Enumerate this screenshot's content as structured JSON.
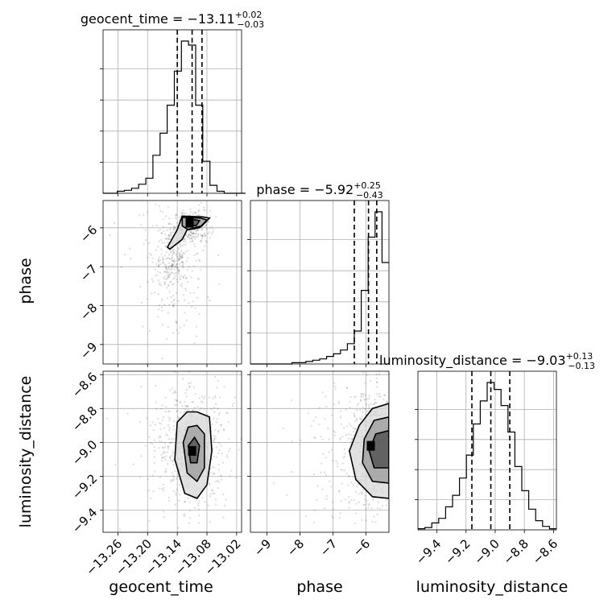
{
  "chart_data": {
    "type": "corner",
    "parameters": [
      {
        "name": "geocent_time",
        "axis_label": "geocent_time",
        "range": [
          -13.29,
          -13.01
        ],
        "ticks": [
          -13.26,
          -13.2,
          -13.14,
          -13.08,
          -13.02
        ],
        "tick_labels": [
          "−13.26",
          "−13.20",
          "−13.14",
          "−13.08",
          "−13.02"
        ],
        "title": {
          "main": "geocent_time = −13.11",
          "sup": "+0.02",
          "sub": "−0.03"
        },
        "quantiles": [
          -13.14,
          -13.11,
          -13.09
        ],
        "hist": {
          "edges_start": -13.29,
          "bin_width": 0.0144,
          "counts": [
            0,
            0,
            2,
            3,
            5,
            9,
            15,
            38,
            60,
            88,
            122,
            152,
            148,
            88,
            32,
            8,
            2,
            0,
            0,
            0
          ]
        }
      },
      {
        "name": "phase",
        "axis_label": "phase",
        "range": [
          -9.5,
          -5.3
        ],
        "ticks": [
          -9,
          -8,
          -7,
          -6
        ],
        "tick_labels": [
          "−9",
          "−8",
          "−7",
          "−6"
        ],
        "title": {
          "main": "phase = −5.92",
          "sup": "+0.25",
          "sub": "−0.43"
        },
        "quantiles": [
          -6.35,
          -5.92,
          -5.67
        ],
        "hist": {
          "edges_start": -9.5,
          "bin_width": 0.21,
          "counts": [
            0,
            0,
            0,
            0,
            0,
            0,
            1,
            1,
            2,
            3,
            4,
            6,
            8,
            11,
            16,
            26,
            58,
            100,
            120,
            80
          ]
        }
      },
      {
        "name": "luminosity_distance",
        "axis_label": "luminosity_distance",
        "range": [
          -9.53,
          -8.58
        ],
        "ticks": [
          -9.4,
          -9.2,
          -9.0,
          -8.8,
          -8.6
        ],
        "tick_labels": [
          "−9.4",
          "−9.2",
          "−9.0",
          "−8.8",
          "−8.6"
        ],
        "title": {
          "main": "luminosity_distance = −9.03",
          "sup": "+0.13",
          "sub": "−0.13"
        },
        "quantiles": [
          -9.16,
          -9.03,
          -8.9
        ],
        "hist": {
          "edges_start": -9.53,
          "bin_width": 0.0475,
          "counts": [
            1,
            2,
            6,
            10,
            20,
            30,
            45,
            65,
            92,
            112,
            128,
            122,
            108,
            85,
            55,
            34,
            18,
            8,
            3,
            1
          ]
        }
      }
    ],
    "pairs": [
      {
        "x": "geocent_time",
        "y": "phase",
        "peak": [
          -13.115,
          -5.87
        ],
        "contours": [
          [
            [
              -13.13,
              -5.7
            ],
            [
              -13.14,
              -6.05
            ],
            [
              -13.16,
              -6.5
            ],
            [
              -13.155,
              -6.55
            ],
            [
              -13.13,
              -6.3
            ],
            [
              -13.12,
              -6.05
            ],
            [
              -13.09,
              -5.95
            ],
            [
              -13.075,
              -5.75
            ],
            [
              -13.09,
              -5.72
            ]
          ],
          [
            [
              -13.13,
              -5.73
            ],
            [
              -13.13,
              -5.95
            ],
            [
              -13.118,
              -6.05
            ],
            [
              -13.095,
              -6.0
            ],
            [
              -13.08,
              -5.8
            ],
            [
              -13.093,
              -5.75
            ]
          ],
          [
            [
              -13.12,
              -5.8
            ],
            [
              -13.12,
              -5.93
            ],
            [
              -13.102,
              -5.95
            ],
            [
              -13.095,
              -5.82
            ],
            [
              -13.11,
              -5.78
            ]
          ]
        ],
        "scatter_clusters": [
          {
            "center": [
              -13.11,
              -5.95
            ],
            "spread": [
              0.018,
              0.2
            ],
            "n": 260
          },
          {
            "center": [
              -13.15,
              -6.8
            ],
            "spread": [
              0.02,
              0.45
            ],
            "n": 230
          },
          {
            "center": [
              -13.14,
              -7.9
            ],
            "spread": [
              0.025,
              0.6
            ],
            "n": 70
          },
          {
            "center": [
              -13.16,
              -6.5
            ],
            "spread": [
              0.05,
              0.8
            ],
            "n": 90
          }
        ]
      },
      {
        "x": "geocent_time",
        "y": "luminosity_distance",
        "peak": [
          -13.11,
          -9.05
        ],
        "contours": [
          [
            [
              -13.1,
              -8.82
            ],
            [
              -13.075,
              -8.85
            ],
            [
              -13.07,
              -9.05
            ],
            [
              -13.08,
              -9.25
            ],
            [
              -13.1,
              -9.33
            ],
            [
              -13.125,
              -9.3
            ],
            [
              -13.145,
              -9.1
            ],
            [
              -13.14,
              -8.88
            ],
            [
              -13.12,
              -8.82
            ]
          ],
          [
            [
              -13.1,
              -8.9
            ],
            [
              -13.085,
              -8.95
            ],
            [
              -13.085,
              -9.15
            ],
            [
              -13.1,
              -9.23
            ],
            [
              -13.12,
              -9.18
            ],
            [
              -13.128,
              -9.0
            ],
            [
              -13.118,
              -8.91
            ]
          ],
          [
            [
              -13.105,
              -8.97
            ],
            [
              -13.095,
              -9.02
            ],
            [
              -13.1,
              -9.12
            ],
            [
              -13.113,
              -9.12
            ],
            [
              -13.118,
              -9.02
            ]
          ]
        ],
        "scatter_clusters": [
          {
            "center": [
              -13.11,
              -9.03
            ],
            "spread": [
              0.035,
              0.17
            ],
            "n": 520
          },
          {
            "center": [
              -13.13,
              -9.02
            ],
            "spread": [
              0.06,
              0.25
            ],
            "n": 110
          }
        ]
      },
      {
        "x": "phase",
        "y": "luminosity_distance",
        "peak": [
          -5.85,
          -9.02
        ],
        "contours": [
          [
            [
              -5.3,
              -8.77
            ],
            [
              -5.8,
              -8.8
            ],
            [
              -6.2,
              -8.9
            ],
            [
              -6.5,
              -9.05
            ],
            [
              -6.3,
              -9.22
            ],
            [
              -5.8,
              -9.32
            ],
            [
              -5.3,
              -9.33
            ]
          ],
          [
            [
              -5.3,
              -8.85
            ],
            [
              -5.75,
              -8.87
            ],
            [
              -6.05,
              -8.98
            ],
            [
              -6.1,
              -9.12
            ],
            [
              -5.8,
              -9.23
            ],
            [
              -5.3,
              -9.24
            ]
          ],
          [
            [
              -5.3,
              -8.93
            ],
            [
              -5.7,
              -8.95
            ],
            [
              -5.9,
              -9.05
            ],
            [
              -5.75,
              -9.15
            ],
            [
              -5.3,
              -9.15
            ]
          ]
        ],
        "scatter_clusters": [
          {
            "center": [
              -5.7,
              -9.03
            ],
            "spread": [
              0.35,
              0.18
            ],
            "n": 480
          },
          {
            "center": [
              -6.6,
              -9.03
            ],
            "spread": [
              0.7,
              0.22
            ],
            "n": 180
          }
        ]
      }
    ],
    "grid": true
  }
}
